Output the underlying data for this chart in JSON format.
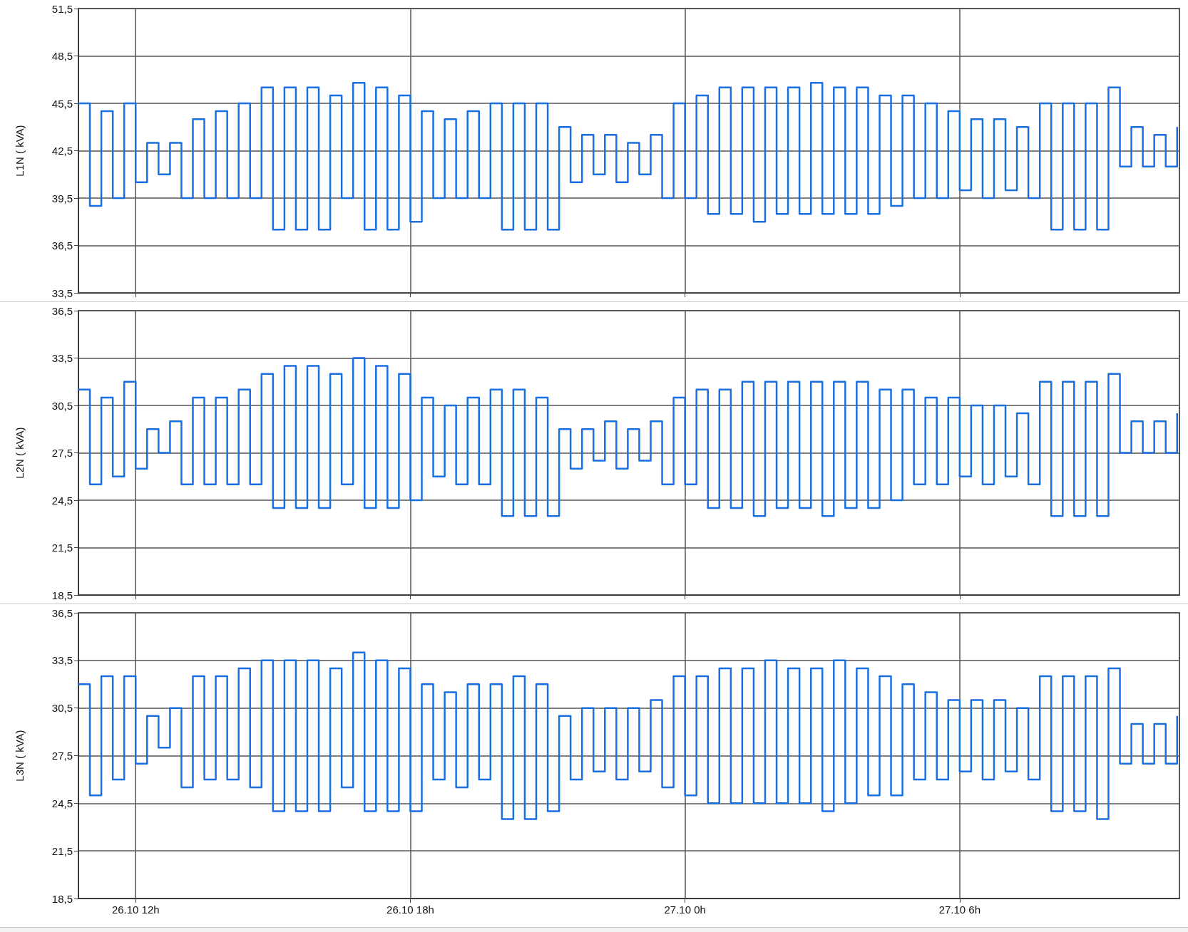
{
  "chart_data": [
    {
      "type": "step",
      "ylabel": "L1N ( kVA)",
      "xlim": [
        "--10-26T10:45",
        "--10-27T10:48"
      ],
      "xticks": [
        {
          "value": "--10-26T12:00",
          "label": null
        },
        {
          "value": "--10-26T18:00",
          "label": null
        },
        {
          "value": "--10-27T00:00",
          "label": null
        },
        {
          "value": "--10-27T06:00",
          "label": null
        }
      ],
      "ylim": [
        33.5,
        51.5
      ],
      "yticks": [
        {
          "value": 33.5,
          "label": "33,5"
        },
        {
          "value": 36.5,
          "label": "36,5"
        },
        {
          "value": 39.5,
          "label": "39,5"
        },
        {
          "value": 42.5,
          "label": "42,5"
        },
        {
          "value": 45.5,
          "label": "45,5"
        },
        {
          "value": 48.5,
          "label": "48,5"
        },
        {
          "value": 51.5,
          "label": "51,5"
        }
      ],
      "grid": true,
      "tick_labels": "y",
      "x": [
        "--10-26T10:45",
        "--10-26T11:00",
        "--10-26T11:15",
        "--10-26T11:30",
        "--10-26T11:45",
        "--10-26T12:00",
        "--10-26T12:15",
        "--10-26T12:30",
        "--10-26T12:45",
        "--10-26T13:00",
        "--10-26T13:15",
        "--10-26T13:30",
        "--10-26T13:45",
        "--10-26T14:00",
        "--10-26T14:15",
        "--10-26T14:30",
        "--10-26T14:45",
        "--10-26T15:00",
        "--10-26T15:15",
        "--10-26T15:30",
        "--10-26T15:45",
        "--10-26T16:00",
        "--10-26T16:15",
        "--10-26T16:30",
        "--10-26T16:45",
        "--10-26T17:00",
        "--10-26T17:15",
        "--10-26T17:30",
        "--10-26T17:45",
        "--10-26T18:00",
        "--10-26T18:15",
        "--10-26T18:30",
        "--10-26T18:45",
        "--10-26T19:00",
        "--10-26T19:15",
        "--10-26T19:30",
        "--10-26T19:45",
        "--10-26T20:00",
        "--10-26T20:15",
        "--10-26T20:30",
        "--10-26T20:45",
        "--10-26T21:00",
        "--10-26T21:15",
        "--10-26T21:30",
        "--10-26T21:45",
        "--10-26T22:00",
        "--10-26T22:15",
        "--10-26T22:30",
        "--10-26T22:45",
        "--10-26T23:00",
        "--10-26T23:15",
        "--10-26T23:30",
        "--10-26T23:45",
        "--10-27T00:00",
        "--10-27T00:15",
        "--10-27T00:30",
        "--10-27T00:45",
        "--10-27T01:00",
        "--10-27T01:15",
        "--10-27T01:30",
        "--10-27T01:45",
        "--10-27T02:00",
        "--10-27T02:15",
        "--10-27T02:30",
        "--10-27T02:45",
        "--10-27T03:00",
        "--10-27T03:15",
        "--10-27T03:30",
        "--10-27T03:45",
        "--10-27T04:00",
        "--10-27T04:15",
        "--10-27T04:30",
        "--10-27T04:45",
        "--10-27T05:00",
        "--10-27T05:15",
        "--10-27T05:30",
        "--10-27T05:45",
        "--10-27T06:00",
        "--10-27T06:15",
        "--10-27T06:30",
        "--10-27T06:45",
        "--10-27T07:00",
        "--10-27T07:15",
        "--10-27T07:30",
        "--10-27T07:45",
        "--10-27T08:00",
        "--10-27T08:15",
        "--10-27T08:30",
        "--10-27T08:45",
        "--10-27T09:00",
        "--10-27T09:15",
        "--10-27T09:30",
        "--10-27T09:45",
        "--10-27T10:00",
        "--10-27T10:15",
        "--10-27T10:30",
        "--10-27T10:45"
      ],
      "series": [
        {
          "color": "#1a6fe0",
          "values": [
            45.5,
            39,
            45,
            39.5,
            45.5,
            40.5,
            43,
            41,
            43,
            39.5,
            44.5,
            39.5,
            45,
            39.5,
            45.5,
            39.5,
            46.5,
            37.5,
            46.5,
            37.5,
            46.5,
            37.5,
            46,
            39.5,
            46.8,
            37.5,
            46.5,
            37.5,
            46,
            38,
            45,
            39.5,
            44.5,
            39.5,
            45,
            39.5,
            45.5,
            37.5,
            45.5,
            37.5,
            45.5,
            37.5,
            44,
            40.5,
            43.5,
            41,
            43.5,
            40.5,
            43,
            41,
            43.5,
            39.5,
            45.5,
            39.5,
            46,
            38.5,
            46.5,
            38.5,
            46.5,
            38,
            46.5,
            38.5,
            46.5,
            38.5,
            46.8,
            38.5,
            46.5,
            38.5,
            46.5,
            38.5,
            46,
            39,
            46,
            39.5,
            45.5,
            39.5,
            45,
            40,
            44.5,
            39.5,
            44.5,
            40,
            44,
            39.5,
            45.5,
            37.5,
            45.5,
            37.5,
            45.5,
            37.5,
            46.5,
            41.5,
            44,
            41.5,
            43.5,
            41.5,
            44
          ]
        }
      ]
    },
    {
      "type": "step",
      "ylabel": "L2N ( kVA)",
      "xlim": [
        "--10-26T10:45",
        "--10-27T10:48"
      ],
      "xticks": [
        {
          "value": "--10-26T12:00",
          "label": null
        },
        {
          "value": "--10-26T18:00",
          "label": null
        },
        {
          "value": "--10-27T00:00",
          "label": null
        },
        {
          "value": "--10-27T06:00",
          "label": null
        }
      ],
      "ylim": [
        18.5,
        36.5
      ],
      "yticks": [
        {
          "value": 18.5,
          "label": "18,5"
        },
        {
          "value": 21.5,
          "label": "21,5"
        },
        {
          "value": 24.5,
          "label": "24,5"
        },
        {
          "value": 27.5,
          "label": "27,5"
        },
        {
          "value": 30.5,
          "label": "30,5"
        },
        {
          "value": 33.5,
          "label": "33,5"
        },
        {
          "value": 36.5,
          "label": "36,5"
        }
      ],
      "grid": true,
      "tick_labels": "y",
      "x": [
        "--10-26T10:45",
        "--10-26T11:00",
        "--10-26T11:15",
        "--10-26T11:30",
        "--10-26T11:45",
        "--10-26T12:00",
        "--10-26T12:15",
        "--10-26T12:30",
        "--10-26T12:45",
        "--10-26T13:00",
        "--10-26T13:15",
        "--10-26T13:30",
        "--10-26T13:45",
        "--10-26T14:00",
        "--10-26T14:15",
        "--10-26T14:30",
        "--10-26T14:45",
        "--10-26T15:00",
        "--10-26T15:15",
        "--10-26T15:30",
        "--10-26T15:45",
        "--10-26T16:00",
        "--10-26T16:15",
        "--10-26T16:30",
        "--10-26T16:45",
        "--10-26T17:00",
        "--10-26T17:15",
        "--10-26T17:30",
        "--10-26T17:45",
        "--10-26T18:00",
        "--10-26T18:15",
        "--10-26T18:30",
        "--10-26T18:45",
        "--10-26T19:00",
        "--10-26T19:15",
        "--10-26T19:30",
        "--10-26T19:45",
        "--10-26T20:00",
        "--10-26T20:15",
        "--10-26T20:30",
        "--10-26T20:45",
        "--10-26T21:00",
        "--10-26T21:15",
        "--10-26T21:30",
        "--10-26T21:45",
        "--10-26T22:00",
        "--10-26T22:15",
        "--10-26T22:30",
        "--10-26T22:45",
        "--10-26T23:00",
        "--10-26T23:15",
        "--10-26T23:30",
        "--10-26T23:45",
        "--10-27T00:00",
        "--10-27T00:15",
        "--10-27T00:30",
        "--10-27T00:45",
        "--10-27T01:00",
        "--10-27T01:15",
        "--10-27T01:30",
        "--10-27T01:45",
        "--10-27T02:00",
        "--10-27T02:15",
        "--10-27T02:30",
        "--10-27T02:45",
        "--10-27T03:00",
        "--10-27T03:15",
        "--10-27T03:30",
        "--10-27T03:45",
        "--10-27T04:00",
        "--10-27T04:15",
        "--10-27T04:30",
        "--10-27T04:45",
        "--10-27T05:00",
        "--10-27T05:15",
        "--10-27T05:30",
        "--10-27T05:45",
        "--10-27T06:00",
        "--10-27T06:15",
        "--10-27T06:30",
        "--10-27T06:45",
        "--10-27T07:00",
        "--10-27T07:15",
        "--10-27T07:30",
        "--10-27T07:45",
        "--10-27T08:00",
        "--10-27T08:15",
        "--10-27T08:30",
        "--10-27T08:45",
        "--10-27T09:00",
        "--10-27T09:15",
        "--10-27T09:30",
        "--10-27T09:45",
        "--10-27T10:00",
        "--10-27T10:15",
        "--10-27T10:30",
        "--10-27T10:45"
      ],
      "series": [
        {
          "color": "#1a6fe0",
          "values": [
            31.5,
            25.5,
            31,
            26,
            32,
            26.5,
            29,
            27.5,
            29.5,
            25.5,
            31,
            25.5,
            31,
            25.5,
            31.5,
            25.5,
            32.5,
            24,
            33,
            24,
            33,
            24,
            32.5,
            25.5,
            33.5,
            24,
            33,
            24,
            32.5,
            24.5,
            31,
            26,
            30.5,
            25.5,
            31,
            25.5,
            31.5,
            23.5,
            31.5,
            23.5,
            31,
            23.5,
            29,
            26.5,
            29,
            27,
            29.5,
            26.5,
            29,
            27,
            29.5,
            25.5,
            31,
            25.5,
            31.5,
            24,
            31.5,
            24,
            32,
            23.5,
            32,
            24,
            32,
            24,
            32,
            23.5,
            32,
            24,
            32,
            24,
            31.5,
            24.5,
            31.5,
            25.5,
            31,
            25.5,
            31,
            26,
            30.5,
            25.5,
            30.5,
            26,
            30,
            25.5,
            32,
            23.5,
            32,
            23.5,
            32,
            23.5,
            32.5,
            27.5,
            29.5,
            27.5,
            29.5,
            27.5,
            30
          ]
        }
      ]
    },
    {
      "type": "step",
      "ylabel": "L3N ( kVA)",
      "xlim": [
        "--10-26T10:45",
        "--10-27T10:48"
      ],
      "xticks": [
        {
          "value": "--10-26T12:00",
          "label": "26.10 12h"
        },
        {
          "value": "--10-26T18:00",
          "label": "26.10 18h"
        },
        {
          "value": "--10-27T00:00",
          "label": "27.10 0h"
        },
        {
          "value": "--10-27T06:00",
          "label": "27.10 6h"
        }
      ],
      "ylim": [
        18.5,
        36.5
      ],
      "yticks": [
        {
          "value": 18.5,
          "label": "18,5"
        },
        {
          "value": 21.5,
          "label": "21,5"
        },
        {
          "value": 24.5,
          "label": "24,5"
        },
        {
          "value": 27.5,
          "label": "27,5"
        },
        {
          "value": 30.5,
          "label": "30,5"
        },
        {
          "value": 33.5,
          "label": "33,5"
        },
        {
          "value": 36.5,
          "label": "36,5"
        }
      ],
      "grid": true,
      "x": [
        "--10-26T10:45",
        "--10-26T11:00",
        "--10-26T11:15",
        "--10-26T11:30",
        "--10-26T11:45",
        "--10-26T12:00",
        "--10-26T12:15",
        "--10-26T12:30",
        "--10-26T12:45",
        "--10-26T13:00",
        "--10-26T13:15",
        "--10-26T13:30",
        "--10-26T13:45",
        "--10-26T14:00",
        "--10-26T14:15",
        "--10-26T14:30",
        "--10-26T14:45",
        "--10-26T15:00",
        "--10-26T15:15",
        "--10-26T15:30",
        "--10-26T15:45",
        "--10-26T16:00",
        "--10-26T16:15",
        "--10-26T16:30",
        "--10-26T16:45",
        "--10-26T17:00",
        "--10-26T17:15",
        "--10-26T17:30",
        "--10-26T17:45",
        "--10-26T18:00",
        "--10-26T18:15",
        "--10-26T18:30",
        "--10-26T18:45",
        "--10-26T19:00",
        "--10-26T19:15",
        "--10-26T19:30",
        "--10-26T19:45",
        "--10-26T20:00",
        "--10-26T20:15",
        "--10-26T20:30",
        "--10-26T20:45",
        "--10-26T21:00",
        "--10-26T21:15",
        "--10-26T21:30",
        "--10-26T21:45",
        "--10-26T22:00",
        "--10-26T22:15",
        "--10-26T22:30",
        "--10-26T22:45",
        "--10-26T23:00",
        "--10-26T23:15",
        "--10-26T23:30",
        "--10-26T23:45",
        "--10-27T00:00",
        "--10-27T00:15",
        "--10-27T00:30",
        "--10-27T00:45",
        "--10-27T01:00",
        "--10-27T01:15",
        "--10-27T01:30",
        "--10-27T01:45",
        "--10-27T02:00",
        "--10-27T02:15",
        "--10-27T02:30",
        "--10-27T02:45",
        "--10-27T03:00",
        "--10-27T03:15",
        "--10-27T03:30",
        "--10-27T03:45",
        "--10-27T04:00",
        "--10-27T04:15",
        "--10-27T04:30",
        "--10-27T04:45",
        "--10-27T05:00",
        "--10-27T05:15",
        "--10-27T05:30",
        "--10-27T05:45",
        "--10-27T06:00",
        "--10-27T06:15",
        "--10-27T06:30",
        "--10-27T06:45",
        "--10-27T07:00",
        "--10-27T07:15",
        "--10-27T07:30",
        "--10-27T07:45",
        "--10-27T08:00",
        "--10-27T08:15",
        "--10-27T08:30",
        "--10-27T08:45",
        "--10-27T09:00",
        "--10-27T09:15",
        "--10-27T09:30",
        "--10-27T09:45",
        "--10-27T10:00",
        "--10-27T10:15",
        "--10-27T10:30",
        "--10-27T10:45"
      ],
      "series": [
        {
          "color": "#1a6fe0",
          "values": [
            32,
            25,
            32.5,
            26,
            32.5,
            27,
            30,
            28,
            30.5,
            25.5,
            32.5,
            26,
            32.5,
            26,
            33,
            25.5,
            33.5,
            24,
            33.5,
            24,
            33.5,
            24,
            33,
            25.5,
            34,
            24,
            33.5,
            24,
            33,
            24,
            32,
            26,
            31.5,
            25.5,
            32,
            26,
            32,
            23.5,
            32.5,
            23.5,
            32,
            24,
            30,
            26,
            30.5,
            26.5,
            30.5,
            26,
            30.5,
            26.5,
            31,
            25.5,
            32.5,
            25,
            32.5,
            24.5,
            33,
            24.5,
            33,
            24.5,
            33.5,
            24.5,
            33,
            24.5,
            33,
            24,
            33.5,
            24.5,
            33,
            25,
            32.5,
            25,
            32,
            26,
            31.5,
            26,
            31,
            26.5,
            31,
            26,
            31,
            26.5,
            30.5,
            26,
            32.5,
            24,
            32.5,
            24,
            32.5,
            23.5,
            33,
            27,
            29.5,
            27,
            29.5,
            27,
            30
          ]
        }
      ]
    }
  ]
}
